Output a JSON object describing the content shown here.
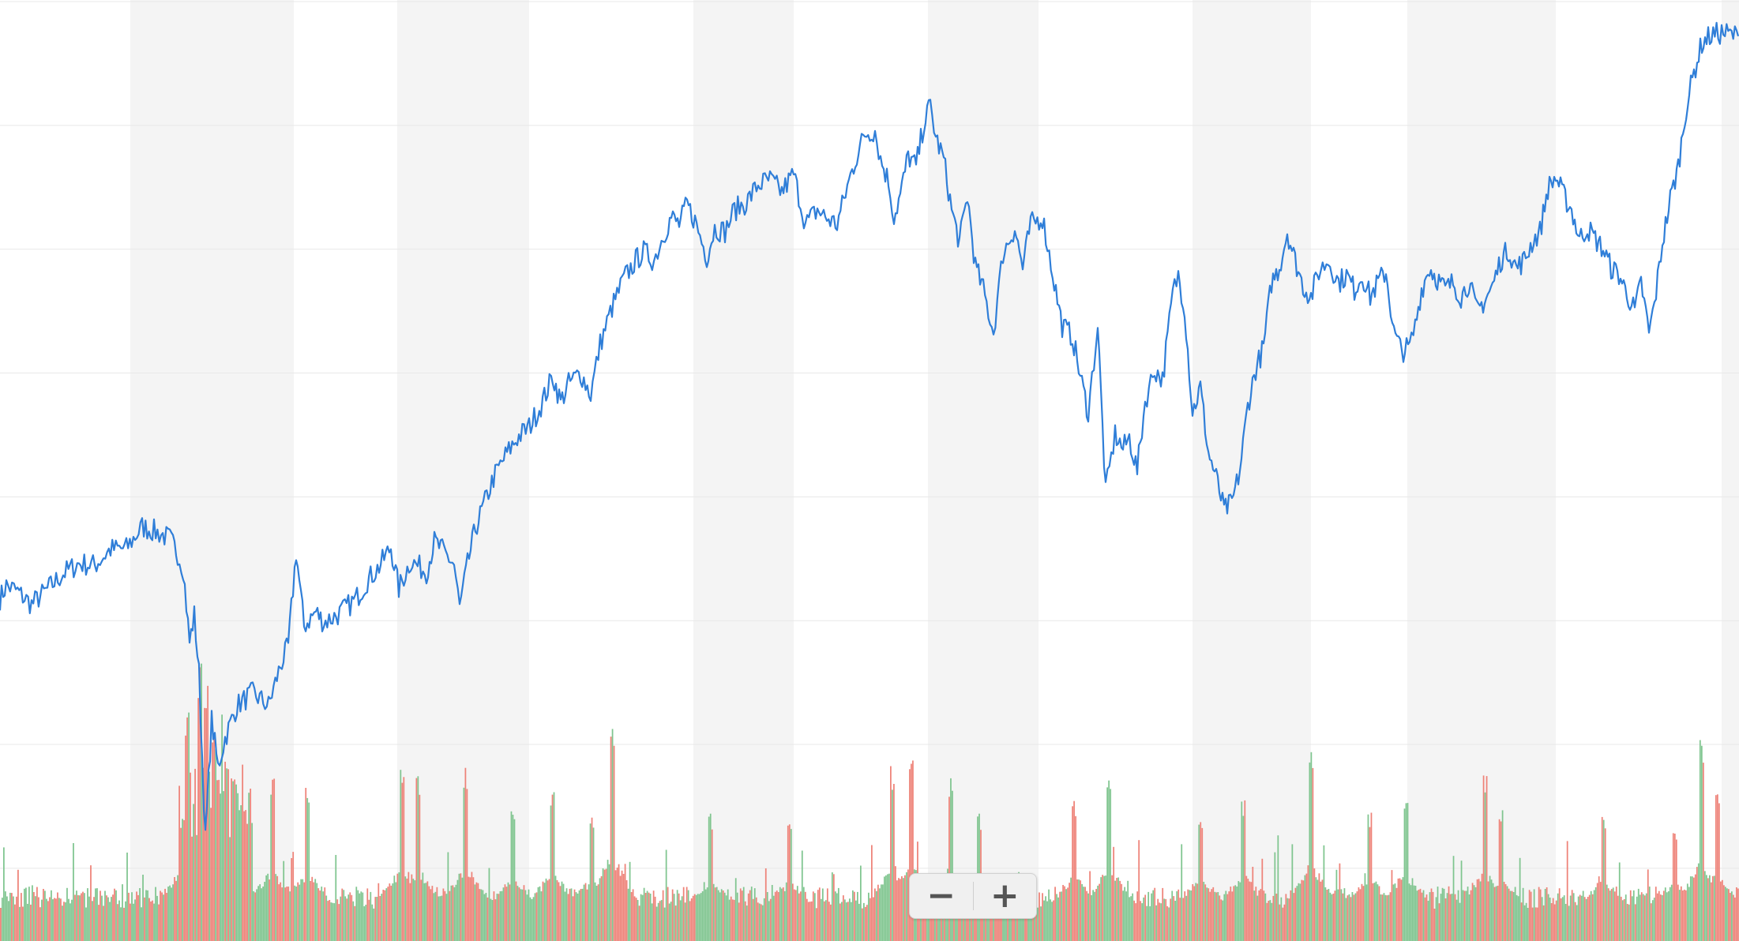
{
  "chart_data": {
    "type": "line",
    "title": "",
    "xlabel": "",
    "ylabel": "",
    "grid": true,
    "legend": "none",
    "series": [
      {
        "kind": "line",
        "color": "#2f7ed8",
        "keypoints": [
          [
            0,
            44.6
          ],
          [
            8,
            48.2
          ],
          [
            20,
            46.9
          ],
          [
            40,
            43.0
          ],
          [
            60,
            47.1
          ],
          [
            80,
            51.5
          ],
          [
            100,
            54.3
          ],
          [
            120,
            53.8
          ],
          [
            140,
            58.2
          ],
          [
            160,
            58.5
          ],
          [
            180,
            64.4
          ],
          [
            195,
            63.3
          ],
          [
            215,
            61.2
          ],
          [
            225,
            57.1
          ],
          [
            232,
            53.0
          ],
          [
            240,
            32.5
          ],
          [
            246,
            40.0
          ],
          [
            252,
            24.0
          ],
          [
            260,
            -22.0
          ],
          [
            268,
            11.0
          ],
          [
            276,
            -2.0
          ],
          [
            285,
            6.0
          ],
          [
            300,
            15.0
          ],
          [
            320,
            18.5
          ],
          [
            340,
            15.0
          ],
          [
            355,
            26.0
          ],
          [
            365,
            31.5
          ],
          [
            375,
            57.6
          ],
          [
            385,
            37.0
          ],
          [
            400,
            41.0
          ],
          [
            410,
            38.0
          ],
          [
            430,
            40.5
          ],
          [
            450,
            44.3
          ],
          [
            465,
            49.5
          ],
          [
            480,
            53.4
          ],
          [
            495,
            58.8
          ],
          [
            505,
            47.3
          ],
          [
            520,
            55.0
          ],
          [
            540,
            52.0
          ],
          [
            550,
            60.3
          ],
          [
            560,
            58.0
          ],
          [
            575,
            54.0
          ],
          [
            582,
            42.0
          ],
          [
            592,
            54.0
          ],
          [
            602,
            64.0
          ],
          [
            612,
            70.0
          ],
          [
            625,
            78.0
          ],
          [
            640,
            84.0
          ],
          [
            655,
            89.0
          ],
          [
            670,
            92.0
          ],
          [
            685,
            98.0
          ],
          [
            700,
            106.0
          ],
          [
            710,
            99.0
          ],
          [
            720,
            104.0
          ],
          [
            735,
            107.0
          ],
          [
            748,
            101.0
          ],
          [
            760,
            115.0
          ],
          [
            775,
            125.0
          ],
          [
            790,
            133.0
          ],
          [
            805,
            138.0
          ],
          [
            815,
            140.5
          ],
          [
            828,
            138.0
          ],
          [
            840,
            145.0
          ],
          [
            850,
            150.0
          ],
          [
            860,
            148.0
          ],
          [
            870,
            153.5
          ],
          [
            880,
            149.0
          ],
          [
            895,
            139.0
          ],
          [
            905,
            147.0
          ],
          [
            918,
            146.0
          ],
          [
            930,
            152.0
          ],
          [
            945,
            154.0
          ],
          [
            960,
            159.0
          ],
          [
            975,
            160.3
          ],
          [
            990,
            157.0
          ],
          [
            1005,
            162.0
          ],
          [
            1020,
            148.0
          ],
          [
            1035,
            152.0
          ],
          [
            1045,
            150.0
          ],
          [
            1060,
            148.0
          ],
          [
            1075,
            160.0
          ],
          [
            1085,
            167.0
          ],
          [
            1095,
            173.0
          ],
          [
            1108,
            174.0
          ],
          [
            1115,
            166.0
          ],
          [
            1125,
            160.0
          ],
          [
            1132,
            150.0
          ],
          [
            1140,
            156.0
          ],
          [
            1150,
            167.0
          ],
          [
            1160,
            164.0
          ],
          [
            1170,
            176.0
          ],
          [
            1178,
            181.0
          ],
          [
            1185,
            172.0
          ],
          [
            1195,
            166.0
          ],
          [
            1205,
            152.0
          ],
          [
            1215,
            143.0
          ],
          [
            1225,
            156.0
          ],
          [
            1235,
            136.5
          ],
          [
            1245,
            130.0
          ],
          [
            1258,
            118.0
          ],
          [
            1270,
            140.0
          ],
          [
            1285,
            147.0
          ],
          [
            1295,
            136.0
          ],
          [
            1305,
            148.0
          ],
          [
            1320,
            150.0
          ],
          [
            1335,
            132.0
          ],
          [
            1345,
            120.0
          ],
          [
            1358,
            117.0
          ],
          [
            1368,
            106.0
          ],
          [
            1378,
            96.0
          ],
          [
            1390,
            120.0
          ],
          [
            1400,
            74.0
          ],
          [
            1412,
            90.0
          ],
          [
            1422,
            86.0
          ],
          [
            1430,
            89.0
          ],
          [
            1440,
            80.0
          ],
          [
            1450,
            99.0
          ],
          [
            1462,
            108.0
          ],
          [
            1472,
            105.0
          ],
          [
            1485,
            129.0
          ],
          [
            1492,
            134.0
          ],
          [
            1500,
            125.0
          ],
          [
            1510,
            96.0
          ],
          [
            1520,
            103.0
          ],
          [
            1530,
            85.0
          ],
          [
            1540,
            78.0
          ],
          [
            1550,
            69.0
          ],
          [
            1560,
            71.0
          ],
          [
            1570,
            80.0
          ],
          [
            1580,
            98.0
          ],
          [
            1590,
            108.0
          ],
          [
            1600,
            114.0
          ],
          [
            1610,
            132.0
          ],
          [
            1620,
            136.0
          ],
          [
            1630,
            146.0
          ],
          [
            1640,
            138.0
          ],
          [
            1650,
            131.0
          ],
          [
            1660,
            128.0
          ],
          [
            1670,
            135.0
          ],
          [
            1682,
            138.0
          ],
          [
            1695,
            132.0
          ],
          [
            1705,
            134.0
          ],
          [
            1715,
            130.0
          ],
          [
            1725,
            134.0
          ],
          [
            1735,
            128.0
          ],
          [
            1745,
            132.0
          ],
          [
            1755,
            135.0
          ],
          [
            1765,
            118.0
          ],
          [
            1775,
            113.0
          ],
          [
            1785,
            114.0
          ],
          [
            1792,
            120.0
          ],
          [
            1800,
            130.0
          ],
          [
            1810,
            136.0
          ],
          [
            1820,
            133.0
          ],
          [
            1830,
            130.0
          ],
          [
            1840,
            132.0
          ],
          [
            1850,
            128.0
          ],
          [
            1860,
            132.0
          ],
          [
            1870,
            124.0
          ],
          [
            1880,
            127.0
          ],
          [
            1890,
            131.0
          ],
          [
            1900,
            138.0
          ],
          [
            1910,
            141.0
          ],
          [
            1920,
            136.0
          ],
          [
            1930,
            138.0
          ],
          [
            1940,
            143.0
          ],
          [
            1950,
            146.0
          ],
          [
            1960,
            158.0
          ],
          [
            1970,
            161.0
          ],
          [
            1980,
            156.0
          ],
          [
            1990,
            152.0
          ],
          [
            2000,
            144.0
          ],
          [
            2010,
            147.0
          ],
          [
            2020,
            144.0
          ],
          [
            2030,
            141.0
          ],
          [
            2040,
            136.0
          ],
          [
            2050,
            134.0
          ],
          [
            2060,
            129.0
          ],
          [
            2070,
            124.0
          ],
          [
            2078,
            132.0
          ],
          [
            2088,
            118.0
          ],
          [
            2095,
            126.0
          ],
          [
            2105,
            143.0
          ],
          [
            2115,
            155.0
          ],
          [
            2125,
            164.0
          ],
          [
            2135,
            180.0
          ],
          [
            2145,
            190.0
          ],
          [
            2155,
            198.0
          ],
          [
            2165,
            200.0
          ],
          [
            2180,
            201.0
          ],
          [
            2201,
            200.0
          ]
        ]
      },
      {
        "kind": "volume",
        "up_color": "#7fc58f",
        "down_color": "#ee8278",
        "count": 1100,
        "base": 14.0,
        "spikes": [
          [
            238,
            100
          ],
          [
            253,
            120
          ],
          [
            262,
            110
          ],
          [
            272,
            95
          ],
          [
            300,
            70
          ],
          [
            345,
            70
          ],
          [
            390,
            65
          ],
          [
            510,
            75
          ],
          [
            530,
            70
          ],
          [
            590,
            75
          ],
          [
            650,
            60
          ],
          [
            700,
            65
          ],
          [
            750,
            55
          ],
          [
            775,
            95
          ],
          [
            900,
            55
          ],
          [
            1000,
            50
          ],
          [
            1130,
            75
          ],
          [
            1155,
            80
          ],
          [
            1205,
            70
          ],
          [
            1240,
            55
          ],
          [
            1360,
            60
          ],
          [
            1405,
            75
          ],
          [
            1520,
            55
          ],
          [
            1575,
            60
          ],
          [
            1660,
            80
          ],
          [
            1735,
            55
          ],
          [
            1780,
            65
          ],
          [
            1880,
            70
          ],
          [
            1900,
            58
          ],
          [
            2030,
            55
          ],
          [
            2120,
            50
          ],
          [
            2155,
            85
          ],
          [
            2175,
            62
          ]
        ],
        "ylim": [
          0,
          100
        ]
      }
    ],
    "ylim": [
      -50,
      210
    ],
    "xlim": [
      0,
      2202
    ],
    "bands": [
      [
        165,
        372
      ],
      [
        503,
        670
      ],
      [
        878,
        1005
      ],
      [
        1175,
        1315
      ],
      [
        1510,
        1660
      ],
      [
        1782,
        1970
      ],
      [
        2180,
        2202
      ]
    ],
    "gridlines": [
      0.5,
      1.0,
      1.5,
      2.0,
      2.5,
      3.0,
      3.5,
      4.0
    ]
  },
  "zoom_controls": {
    "zoom_out_glyph": "−",
    "zoom_in_glyph": "+"
  },
  "colors": {
    "line": "#2f7ed8",
    "band": "#f4f4f4",
    "grid": "#e8e8e8",
    "volume_up": "#7fc58f",
    "volume_down": "#ee8278"
  }
}
